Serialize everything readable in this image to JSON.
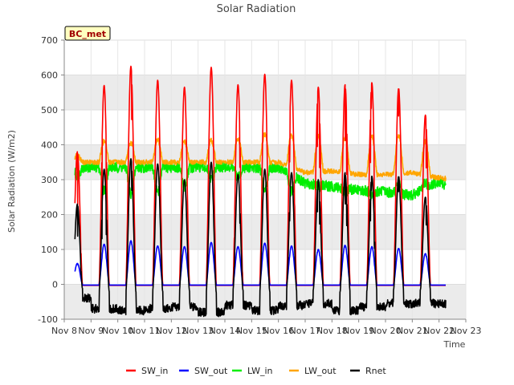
{
  "chart_data": {
    "type": "line",
    "title": "Solar Radiation",
    "xlabel": "Time",
    "ylabel": "Solar Radiation (W/m2)",
    "badge": "BC_met",
    "ylim": [
      -100,
      700
    ],
    "yticks": [
      -100,
      0,
      100,
      200,
      300,
      400,
      500,
      600,
      700
    ],
    "xlim": [
      8,
      23
    ],
    "xticks": [
      8,
      9,
      10,
      11,
      12,
      13,
      14,
      15,
      16,
      17,
      18,
      19,
      20,
      21,
      22,
      23
    ],
    "xtick_labels": [
      "Nov 8",
      "Nov 9",
      "Nov 10",
      "Nov 11",
      "Nov 12",
      "Nov 13",
      "Nov 14",
      "Nov 15",
      "Nov 16",
      "Nov 17",
      "Nov 18",
      "Nov 19",
      "Nov 20",
      "Nov 21",
      "Nov 22",
      "Nov 23"
    ],
    "data_range": [
      8.4,
      22.25
    ],
    "legend_position": "bottom",
    "grid": true,
    "colors": {
      "SW_in": "#ff0000",
      "SW_out": "#0000ff",
      "LW_in": "#00ee00",
      "LW_out": "#ffa500",
      "Rnet": "#000000",
      "band": "#ebebeb",
      "badge_fill": "#ffffc0"
    },
    "series": [
      {
        "name": "SW_in",
        "daily_peak": [
          380,
          570,
          625,
          585,
          565,
          622,
          572,
          602,
          585,
          565,
          572,
          578,
          563,
          485
        ]
      },
      {
        "name": "SW_out",
        "daily_peak": [
          60,
          115,
          125,
          110,
          108,
          120,
          108,
          118,
          110,
          100,
          112,
          108,
          103,
          88
        ]
      },
      {
        "name": "LW_in",
        "night_level": [
          335,
          290,
          280,
          270,
          265,
          255,
          295,
          255,
          245,
          275,
          290,
          245,
          280,
          255
        ],
        "day_level": [
          310,
          270,
          260,
          265,
          280,
          300,
          305,
          270,
          265,
          280,
          265,
          255,
          285,
          290
        ]
      },
      {
        "name": "LW_out",
        "night_level": [
          350,
          320,
          325,
          315,
          315,
          320,
          305,
          300,
          295,
          305,
          315,
          305,
          300,
          300
        ],
        "daily_peak": [
          370,
          410,
          405,
          415,
          410,
          412,
          418,
          430,
          428,
          425,
          420,
          425,
          428,
          410
        ]
      },
      {
        "name": "Rnet",
        "daily_peak": [
          230,
          330,
          360,
          345,
          300,
          350,
          315,
          330,
          320,
          300,
          320,
          310,
          310,
          250
        ],
        "night_level": [
          -40,
          -70,
          -75,
          -70,
          -65,
          -80,
          -60,
          -75,
          -60,
          -55,
          -75,
          -65,
          -55,
          -55
        ]
      }
    ]
  }
}
